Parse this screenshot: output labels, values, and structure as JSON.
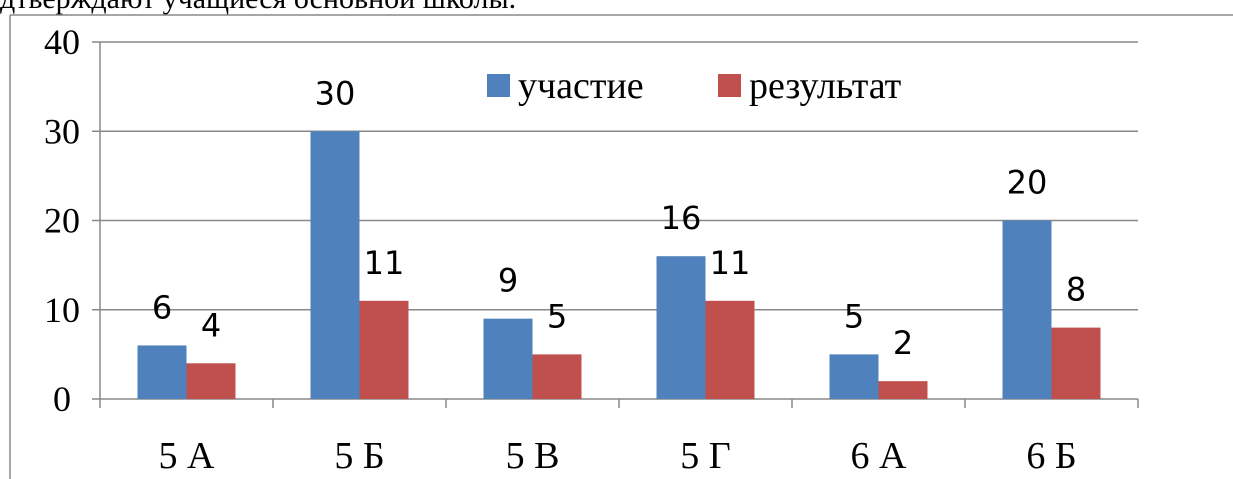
{
  "caption": "дтверждают учащиеся основной школы.",
  "chart_data": {
    "type": "bar",
    "categories": [
      "5 А",
      "5 Б",
      "5 В",
      "5 Г",
      "6 А",
      "6 Б"
    ],
    "series": [
      {
        "name": "участие",
        "color": "#4f81bd",
        "values": [
          6,
          30,
          9,
          16,
          5,
          20
        ]
      },
      {
        "name": "результат",
        "color": "#c0504d",
        "values": [
          4,
          11,
          5,
          11,
          2,
          8
        ]
      }
    ],
    "ylim": [
      0,
      40
    ],
    "yticks": [
      0,
      10,
      20,
      30,
      40
    ],
    "grid": true,
    "legend": "top"
  }
}
